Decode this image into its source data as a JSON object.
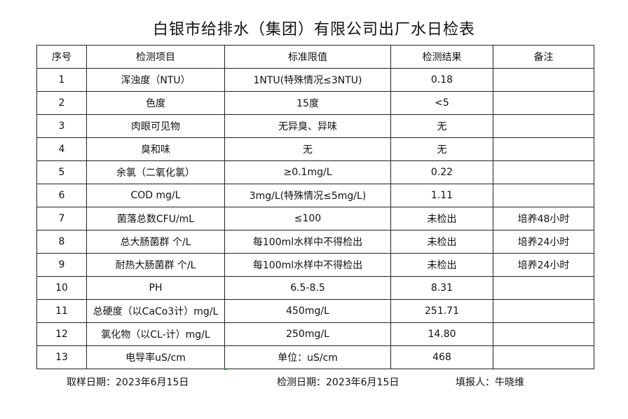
{
  "title": "白银市给排水（集团）有限公司出厂水日检表",
  "headers": [
    "序号",
    "检测项目",
    "标准限值",
    "检测结果",
    "备注"
  ],
  "rows": [
    [
      "1",
      "浑浊度（NTU）",
      "1NTU(特殊情况≤3NTU)",
      "0.18",
      ""
    ],
    [
      "2",
      "色度",
      "15度",
      "<5",
      ""
    ],
    [
      "3",
      "肉眼可见物",
      "无异臭、异味",
      "无",
      ""
    ],
    [
      "4",
      "臭和味",
      "无",
      "无",
      ""
    ],
    [
      "5",
      "余氯（二氧化氯）",
      "≥0.1mg/L",
      "0.22",
      ""
    ],
    [
      "6",
      "COD        mg/L",
      "3mg/L(特殊情况≤5mg/L)",
      "1.11",
      ""
    ],
    [
      "7",
      "菌落总数CFU/mL",
      "≤100",
      "未检出",
      "培养48小时"
    ],
    [
      "8",
      "总大肠菌群 个/L",
      "每100ml水样中不得检出",
      "未检出",
      "培养24小时"
    ],
    [
      "9",
      "耐热大肠菌群 个/L",
      "每100ml水样中不得检出",
      "未检出",
      "培养24小时"
    ],
    [
      "10",
      "PH",
      "6.5-8.5",
      "8.31",
      ""
    ],
    [
      "11",
      "总硬度（以CaCo3计）mg/L",
      "450mg/L",
      "251.71",
      ""
    ],
    [
      "12",
      "氯化物（以CL-计）mg/L",
      "250mg/L",
      "14.80",
      ""
    ],
    [
      "13",
      "电导率uS/cm",
      "单位：uS/cm",
      "468",
      ""
    ]
  ],
  "footer": {
    "sample_date": "取样日期：2023年6月15日",
    "test_date": "检测日期：2023年6月15日",
    "reporter": "填报人：牛晓维"
  }
}
